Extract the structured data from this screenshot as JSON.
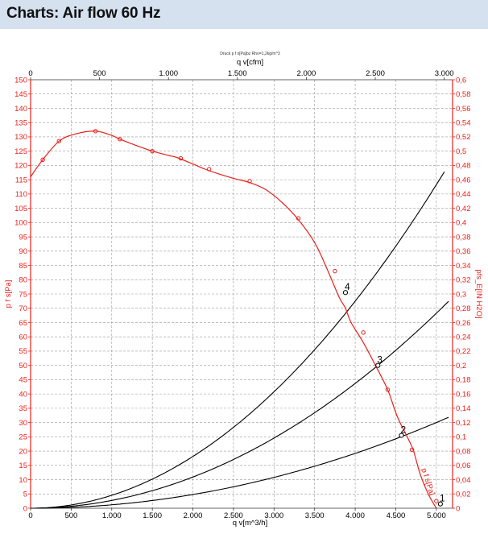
{
  "header": {
    "title": "Charts: Air flow 60 Hz"
  },
  "chart_data": {
    "type": "line",
    "title": "Charts: Air flow 60 Hz",
    "subtitle": "Druck p f s[Pa]bz Rho=1,2kg/m^3",
    "x_bottom": {
      "label": "q v[m^3/h]",
      "lim": [
        0,
        5200
      ],
      "ticks": [
        0,
        500,
        1000,
        1500,
        2000,
        2500,
        3000,
        3500,
        4000,
        4500,
        5000
      ],
      "tick_labels": [
        "0",
        "500",
        "1.000",
        "1.500",
        "2.000",
        "2.500",
        "3.000",
        "3.500",
        "4.000",
        "4.500",
        "5.000"
      ]
    },
    "x_top": {
      "label": "q v[cfm]",
      "lim": [
        0,
        3060.5
      ],
      "ticks": [
        0,
        500,
        1000,
        1500,
        2000,
        2500,
        3000
      ],
      "tick_labels": [
        "0",
        "500",
        "1.000",
        "1.500",
        "2.000",
        "2.500",
        "3.000"
      ]
    },
    "y_left": {
      "label": "p f s[Pa]",
      "lim": [
        0,
        150
      ],
      "ticks": [
        0,
        5,
        10,
        15,
        20,
        25,
        30,
        35,
        40,
        45,
        50,
        55,
        60,
        65,
        70,
        75,
        80,
        85,
        90,
        95,
        100,
        105,
        110,
        115,
        120,
        125,
        130,
        135,
        140,
        145,
        150
      ],
      "tick_labels": [
        "0",
        "5",
        "10",
        "15",
        "20",
        "25",
        "30",
        "35",
        "40",
        "45",
        "50",
        "55",
        "60",
        "65",
        "70",
        "75",
        "80",
        "85",
        "90",
        "95",
        "100",
        "105",
        "110",
        "115",
        "120",
        "125",
        "130",
        "135",
        "140",
        "145",
        "150"
      ]
    },
    "y_right": {
      "label": "pfs_E[IN H2O]",
      "lim": [
        0,
        0.6
      ],
      "ticks": [
        0,
        0.02,
        0.04,
        0.06,
        0.08,
        0.1,
        0.12,
        0.14,
        0.16,
        0.18,
        0.2,
        0.22,
        0.24,
        0.26,
        0.28,
        0.3,
        0.32,
        0.34,
        0.36,
        0.38,
        0.4,
        0.42,
        0.44,
        0.46,
        0.48,
        0.5,
        0.52,
        0.54,
        0.56,
        0.58,
        0.6
      ],
      "tick_labels": [
        "0",
        "0,02",
        "0,04",
        "0,06",
        "0,08",
        "0,1",
        "0,12",
        "0,14",
        "0,16",
        "0,18",
        "0,2",
        "0,22",
        "0,24",
        "0,26",
        "0,28",
        "0,3",
        "0,32",
        "0,34",
        "0,36",
        "0,38",
        "0,4",
        "0,42",
        "0,44",
        "0,46",
        "0,48",
        "0,5",
        "0,52",
        "0,54",
        "0,56",
        "0,58",
        "0,6"
      ]
    },
    "grid": true,
    "colors": {
      "fan_curve": "#e8211b",
      "system_curve": "#000000",
      "axis_left": "#e8211b",
      "axis_right": "#e8211b",
      "grid": "#9a9a9a"
    },
    "fan_curve": {
      "name": "p f s[Pa]",
      "x": [
        0,
        150,
        350,
        550,
        800,
        1000,
        1100,
        1300,
        1500,
        1700,
        1800,
        2000,
        2150,
        2300,
        2500,
        2700,
        2900,
        3100,
        3300,
        3500,
        3650,
        3800,
        3880,
        3950,
        4100,
        4250,
        4400,
        4520,
        4650,
        4720,
        4800,
        4900,
        5000
      ],
      "y": [
        116,
        122,
        128.5,
        131,
        132,
        130.5,
        129.2,
        127,
        125,
        123.5,
        122.8,
        120.5,
        118.7,
        117.2,
        115.5,
        114,
        111.5,
        107,
        101,
        93,
        84,
        74,
        70,
        65,
        58,
        50,
        41.5,
        32,
        24.5,
        20,
        12,
        5,
        0
      ],
      "markers_x": [
        150,
        350,
        800,
        1100,
        1500,
        1850,
        2200,
        2700,
        3300,
        3750,
        4100,
        4400,
        4700,
        5000
      ],
      "markers_y": [
        122,
        128.5,
        132,
        129.2,
        125,
        122.5,
        118.7,
        114.5,
        101.5,
        83,
        61.5,
        41.5,
        20.5,
        2.5
      ]
    },
    "system_curves": [
      {
        "name": "4",
        "k": 4.53,
        "x_end": 5100
      },
      {
        "name": "3",
        "k": 2.73,
        "x_end": 5150
      },
      {
        "name": "2",
        "k": 1.2,
        "x_end": 5150
      }
    ],
    "operating_points": [
      {
        "label": "4",
        "x": 3880,
        "y": 75.5
      },
      {
        "label": "3",
        "x": 4280,
        "y": 50
      },
      {
        "label": "2",
        "x": 4570,
        "y": 25.5
      },
      {
        "label": "1",
        "x": 5050,
        "y": 1.5
      }
    ]
  }
}
